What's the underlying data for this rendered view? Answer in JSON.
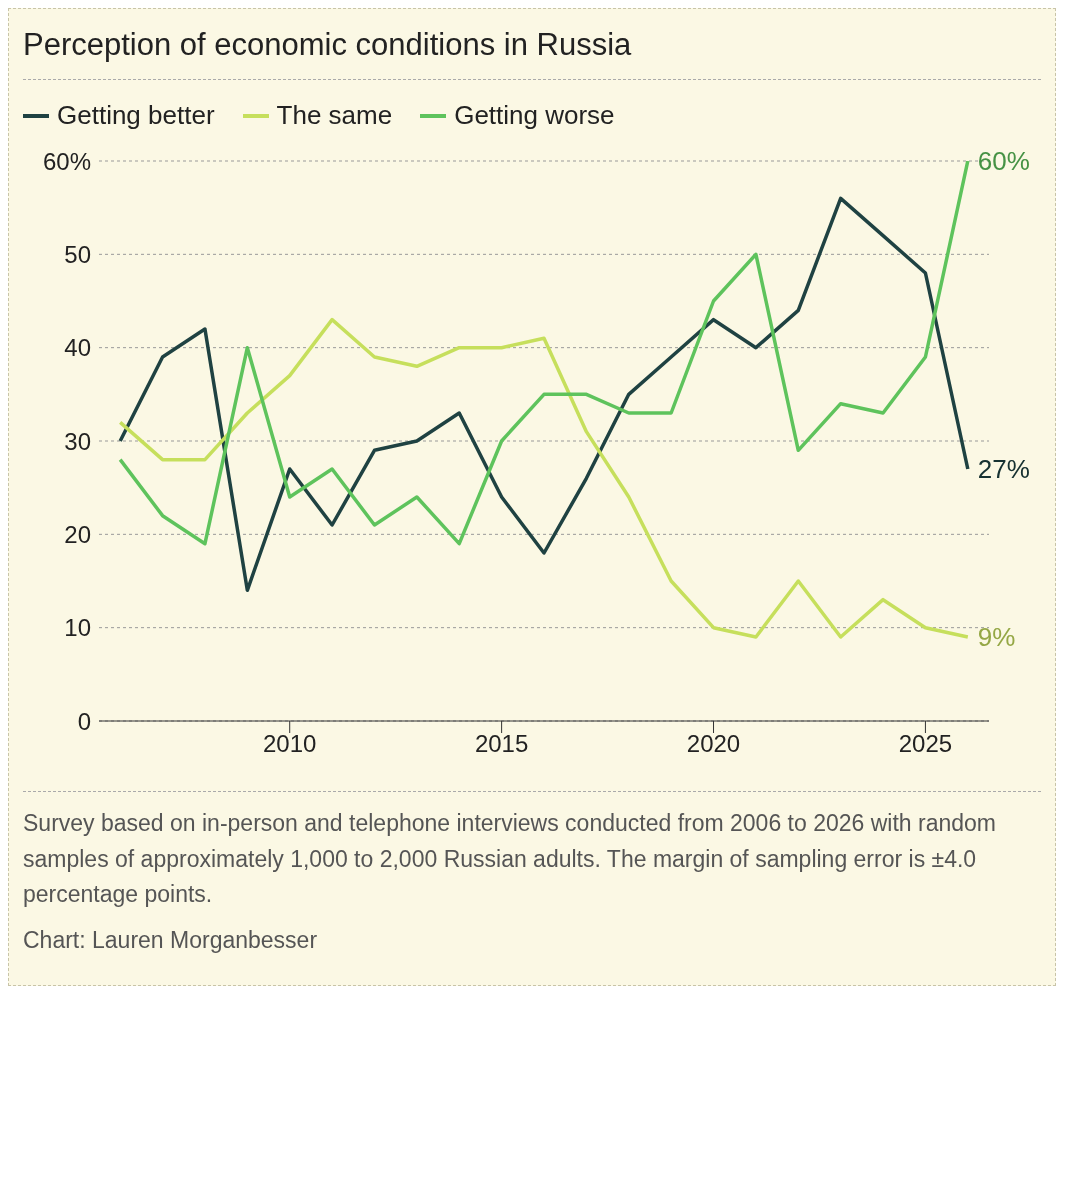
{
  "chart_data": {
    "type": "line",
    "title": "Perception of economic conditions in Russia",
    "x": [
      2006,
      2007,
      2008,
      2009,
      2010,
      2011,
      2012,
      2013,
      2014,
      2015,
      2016,
      2017,
      2018,
      2019,
      2020,
      2021,
      2022,
      2023,
      2024,
      2025,
      2026
    ],
    "series": [
      {
        "name": "Getting better",
        "color": "#1f4242",
        "values": [
          30,
          39,
          42,
          14,
          27,
          21,
          29,
          30,
          33,
          24,
          18,
          26,
          35,
          39,
          43,
          40,
          44,
          56,
          52,
          48,
          27
        ],
        "value_labels": [
          null,
          null,
          null,
          null,
          null,
          null,
          null,
          null,
          null,
          null,
          null,
          null,
          null,
          null,
          null,
          null,
          null,
          null,
          null,
          null,
          "27%"
        ]
      },
      {
        "name": "The same",
        "color": "#c6df5c",
        "values": [
          32,
          28,
          28,
          33,
          37,
          43,
          39,
          38,
          40,
          40,
          41,
          31,
          24,
          15,
          10,
          9,
          15,
          9,
          13,
          10,
          9
        ],
        "value_labels": [
          null,
          null,
          null,
          null,
          null,
          null,
          null,
          null,
          null,
          null,
          null,
          null,
          null,
          null,
          null,
          null,
          null,
          null,
          null,
          null,
          "9%"
        ]
      },
      {
        "name": "Getting worse",
        "color": "#5ec35c",
        "values": [
          28,
          22,
          19,
          40,
          24,
          27,
          21,
          24,
          19,
          30,
          35,
          35,
          33,
          33,
          45,
          50,
          29,
          34,
          33,
          39,
          60
        ],
        "value_labels": [
          null,
          null,
          null,
          null,
          null,
          null,
          null,
          null,
          null,
          null,
          null,
          null,
          null,
          null,
          null,
          null,
          null,
          null,
          null,
          null,
          "60%"
        ]
      }
    ],
    "xlim": [
      2005.5,
      2026.5
    ],
    "xticks": [
      2010,
      2015,
      2020,
      2025
    ],
    "ylim": [
      0,
      60
    ],
    "yticks": [
      0,
      10,
      20,
      30,
      40,
      50,
      {
        "value": 60,
        "label": "60%"
      }
    ],
    "grid": "y",
    "legend": "top left",
    "marker": "none",
    "line_style": "solid",
    "annotations": [
      "Survey based on in-person and telephone interviews conducted from 2006 to 2026 with random samples of approximately 1,000 to 2,000 Russian adults. The margin of sampling error is ±4.0 percentage points.",
      "Chart: Lauren Morganbesser"
    ]
  }
}
